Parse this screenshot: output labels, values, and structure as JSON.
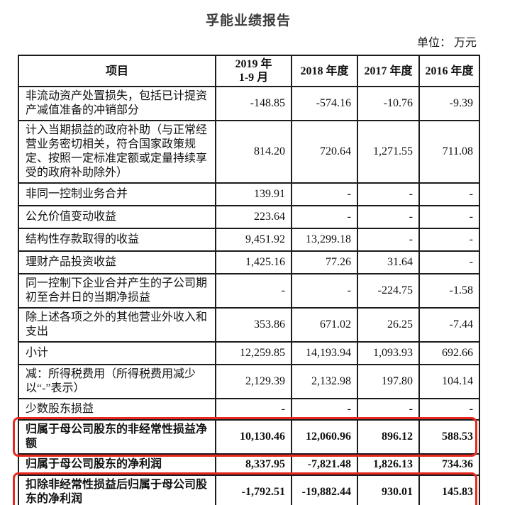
{
  "page": {
    "title": "孚能业绩报告",
    "unit_note": "单位： 万元"
  },
  "colors": {
    "highlight_border": "#e8281e",
    "table_border": "#1c1c1c",
    "text": "#111111"
  },
  "table": {
    "headers": [
      "项目",
      "2019 年\n1-9 月",
      "2018 年度",
      "2017 年度",
      "2016 年度"
    ],
    "rows": [
      {
        "label": "非流动资产处置损失，包括已计提资产减值准备的冲销部分",
        "values": [
          "-148.85",
          "-574.16",
          "-10.76",
          "-9.39"
        ],
        "bold": false,
        "highlighted": false
      },
      {
        "label": "计入当期损益的政府补助（与正常经营业务密切相关，符合国家政策规定、按照一定标准定额或定量持续享受的政府补助除外）",
        "values": [
          "814.20",
          "720.64",
          "1,271.55",
          "711.08"
        ],
        "bold": false,
        "highlighted": false
      },
      {
        "label": "非同一控制业务合并",
        "values": [
          "139.91",
          "-",
          "-",
          "-"
        ],
        "bold": false,
        "highlighted": false
      },
      {
        "label": "公允价值变动收益",
        "values": [
          "223.64",
          "-",
          "-",
          "-"
        ],
        "bold": false,
        "highlighted": false
      },
      {
        "label": "结构性存款取得的收益",
        "values": [
          "9,451.92",
          "13,299.18",
          "-",
          "-"
        ],
        "bold": false,
        "highlighted": false
      },
      {
        "label": "理财产品投资收益",
        "values": [
          "1,425.16",
          "77.26",
          "31.64",
          "-"
        ],
        "bold": false,
        "highlighted": false
      },
      {
        "label": "同一控制下企业合并产生的子公司期初至合并日的当期净损益",
        "values": [
          "-",
          "-",
          "-224.75",
          "-1.58"
        ],
        "bold": false,
        "highlighted": false
      },
      {
        "label": "除上述各项之外的其他营业外收入和支出",
        "values": [
          "353.86",
          "671.02",
          "26.25",
          "-7.44"
        ],
        "bold": false,
        "highlighted": false
      },
      {
        "label": "小计",
        "values": [
          "12,259.85",
          "14,193.94",
          "1,093.93",
          "692.66"
        ],
        "bold": false,
        "highlighted": false
      },
      {
        "label": "减：所得税费用（所得税费用减少以“-”表示）",
        "values": [
          "2,129.39",
          "2,132.98",
          "197.80",
          "104.14"
        ],
        "bold": false,
        "highlighted": false
      },
      {
        "label": "少数股东损益",
        "values": [
          "-",
          "-",
          "-",
          "-"
        ],
        "bold": false,
        "highlighted": false
      },
      {
        "label": "归属于母公司股东的非经常性损益净额",
        "values": [
          "10,130.46",
          "12,060.96",
          "896.12",
          "588.53"
        ],
        "bold": true,
        "highlighted": true
      },
      {
        "label": "归属于母公司股东的净利润",
        "values": [
          "8,337.95",
          "-7,821.48",
          "1,826.13",
          "734.36"
        ],
        "bold": true,
        "highlighted": false
      },
      {
        "label": "扣除非经常性损益后归属于母公司股东的净利润",
        "values": [
          "-1,792.51",
          "-19,882.44",
          "930.01",
          "145.83"
        ],
        "bold": true,
        "highlighted": true
      }
    ]
  }
}
